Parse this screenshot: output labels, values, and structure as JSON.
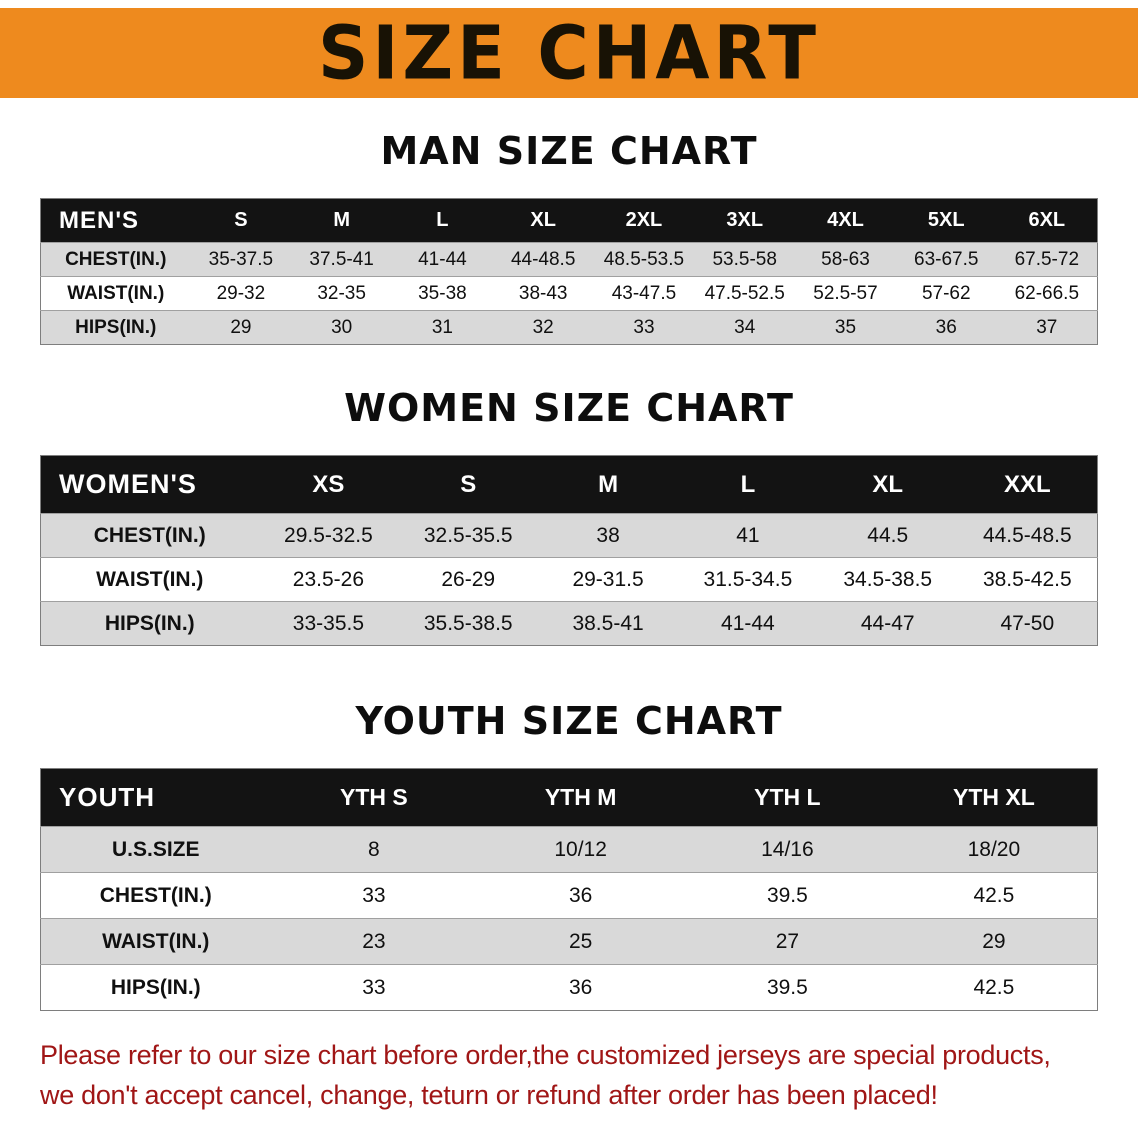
{
  "banner": {
    "title": "SIZE CHART",
    "bg_color": "#EE8A1E",
    "text_color": "#181205"
  },
  "sections": [
    {
      "heading": "MAN SIZE CHART",
      "table": {
        "header": [
          "MEN'S",
          "S",
          "M",
          "L",
          "XL",
          "2XL",
          "3XL",
          "4XL",
          "5XL",
          "6XL"
        ],
        "rows": [
          [
            "CHEST(IN.)",
            "35-37.5",
            "37.5-41",
            "41-44",
            "44-48.5",
            "48.5-53.5",
            "53.5-58",
            "58-63",
            "63-67.5",
            "67.5-72"
          ],
          [
            "WAIST(IN.)",
            "29-32",
            "32-35",
            "35-38",
            "38-43",
            "43-47.5",
            "47.5-52.5",
            "52.5-57",
            "57-62",
            "62-66.5"
          ],
          [
            "HIPS(IN.)",
            "29",
            "30",
            "31",
            "32",
            "33",
            "34",
            "35",
            "36",
            "37"
          ]
        ]
      }
    },
    {
      "heading": "WOMEN SIZE CHART",
      "table": {
        "header": [
          "WOMEN'S",
          "XS",
          "S",
          "M",
          "L",
          "XL",
          "XXL"
        ],
        "rows": [
          [
            "CHEST(IN.)",
            "29.5-32.5",
            "32.5-35.5",
            "38",
            "41",
            "44.5",
            "44.5-48.5"
          ],
          [
            "WAIST(IN.)",
            "23.5-26",
            "26-29",
            "29-31.5",
            "31.5-34.5",
            "34.5-38.5",
            "38.5-42.5"
          ],
          [
            "HIPS(IN.)",
            "33-35.5",
            "35.5-38.5",
            "38.5-41",
            "41-44",
            "44-47",
            "47-50"
          ]
        ]
      }
    },
    {
      "heading": "YOUTH SIZE CHART",
      "table": {
        "header": [
          "YOUTH",
          "YTH S",
          "YTH M",
          "YTH L",
          "YTH XL"
        ],
        "rows": [
          [
            "U.S.SIZE",
            "8",
            "10/12",
            "14/16",
            "18/20"
          ],
          [
            "CHEST(IN.)",
            "33",
            "36",
            "39.5",
            "42.5"
          ],
          [
            "WAIST(IN.)",
            "23",
            "25",
            "27",
            "29"
          ],
          [
            "HIPS(IN.)",
            "33",
            "36",
            "39.5",
            "42.5"
          ]
        ]
      }
    }
  ],
  "disclaimer": {
    "line1": "Please refer to our size chart before order,the customized jerseys are special products,",
    "line2": "we don't accept cancel, change, teturn or refund after order has been placed!",
    "color": "#A01616"
  }
}
